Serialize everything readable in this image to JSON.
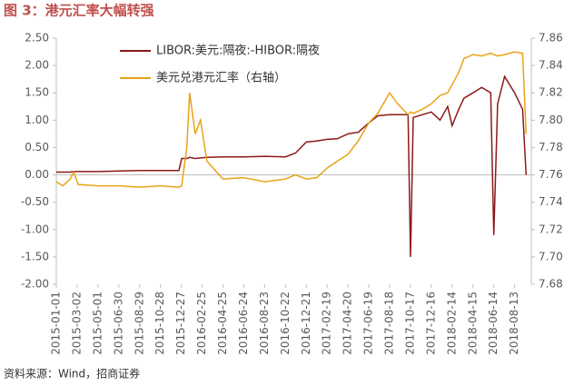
{
  "chart_data": {
    "type": "line",
    "title": "图 3：港元汇率大幅转强",
    "source": "资料来源：Wind，招商证券",
    "legend": "upper left",
    "grid": false,
    "x": [
      "2015-01-01",
      "2015-01-20",
      "2015-02-10",
      "2015-02-20",
      "2015-03-05",
      "2015-05-01",
      "2015-06-30",
      "2015-08-29",
      "2015-10-28",
      "2015-12-20",
      "2015-12-28",
      "2016-01-12",
      "2016-01-20",
      "2016-02-05",
      "2016-02-20",
      "2016-03-10",
      "2016-04-25",
      "2016-06-24",
      "2016-08-23",
      "2016-10-22",
      "2016-11-20",
      "2016-12-21",
      "2017-01-20",
      "2017-02-19",
      "2017-03-20",
      "2017-04-20",
      "2017-05-20",
      "2017-06-19",
      "2017-07-15",
      "2017-08-18",
      "2017-09-10",
      "2017-10-10",
      "2017-10-17",
      "2017-10-25",
      "2017-11-20",
      "2017-12-16",
      "2018-01-10",
      "2018-02-01",
      "2018-02-14",
      "2018-03-05",
      "2018-03-20",
      "2018-04-15",
      "2018-05-10",
      "2018-06-05",
      "2018-06-14",
      "2018-06-25",
      "2018-07-15",
      "2018-08-13",
      "2018-09-05",
      "2018-09-15"
    ],
    "series": [
      {
        "name": "LIBOR:美元:隔夜:-HIBOR:隔夜",
        "color": "#8B1A1A",
        "values": [
          0.05,
          0.05,
          0.05,
          0.06,
          0.06,
          0.06,
          0.07,
          0.08,
          0.08,
          0.08,
          0.3,
          0.3,
          0.32,
          0.3,
          0.31,
          0.32,
          0.33,
          0.33,
          0.34,
          0.33,
          0.4,
          0.6,
          0.62,
          0.65,
          0.66,
          0.75,
          0.78,
          0.95,
          1.08,
          1.1,
          1.1,
          1.1,
          -1.5,
          1.05,
          1.1,
          1.15,
          1.0,
          1.25,
          0.9,
          1.2,
          1.4,
          1.5,
          1.6,
          1.5,
          -1.1,
          1.3,
          1.8,
          1.5,
          1.2,
          0.0
        ]
      },
      {
        "name": "美元兑港元汇率（右轴）",
        "color": "#E8A317",
        "axis": "y2",
        "values": [
          7.755,
          7.752,
          7.757,
          7.762,
          7.753,
          7.752,
          7.752,
          7.751,
          7.752,
          7.751,
          7.752,
          7.78,
          7.82,
          7.79,
          7.8,
          7.77,
          7.757,
          7.758,
          7.755,
          7.757,
          7.76,
          7.757,
          7.758,
          7.765,
          7.77,
          7.775,
          7.785,
          7.798,
          7.805,
          7.82,
          7.812,
          7.804,
          7.806,
          7.805,
          7.808,
          7.812,
          7.818,
          7.82,
          7.826,
          7.835,
          7.845,
          7.848,
          7.847,
          7.849,
          7.848,
          7.847,
          7.848,
          7.85,
          7.849,
          7.79
        ]
      }
    ],
    "xlim": [
      "2015-01-01",
      "2018-09-30"
    ],
    "xticks": [
      "2015-01-01",
      "2015-03-02",
      "2015-05-01",
      "2015-06-30",
      "2015-08-29",
      "2015-10-28",
      "2015-12-27",
      "2016-02-25",
      "2016-04-25",
      "2016-06-24",
      "2016-08-23",
      "2016-10-22",
      "2016-12-21",
      "2017-02-19",
      "2017-04-20",
      "2017-06-19",
      "2017-08-18",
      "2017-10-17",
      "2017-12-16",
      "2018-02-14",
      "2018-04-15",
      "2018-06-14",
      "2018-08-13"
    ],
    "ylim": [
      -2,
      2.5
    ],
    "yticks": [
      {
        "value": -2,
        "label": "-2.00"
      },
      {
        "value": -1.5,
        "label": "-1.50"
      },
      {
        "value": -1,
        "label": "-1.00"
      },
      {
        "value": -0.5,
        "label": "-0.50"
      },
      {
        "value": 0,
        "label": "0.00"
      },
      {
        "value": 0.5,
        "label": "0.50"
      },
      {
        "value": 1,
        "label": "1.00"
      },
      {
        "value": 1.5,
        "label": "1.50"
      },
      {
        "value": 2,
        "label": "2.00"
      },
      {
        "value": 2.5,
        "label": "2.50"
      }
    ],
    "y2lim": [
      7.68,
      7.86
    ],
    "y2ticks": [
      7.68,
      {
        "value": 7.7,
        "label": "7.70"
      },
      7.72,
      7.74,
      7.76,
      7.78,
      {
        "value": 7.8,
        "label": "7.80"
      },
      7.82,
      7.84,
      7.86
    ]
  }
}
